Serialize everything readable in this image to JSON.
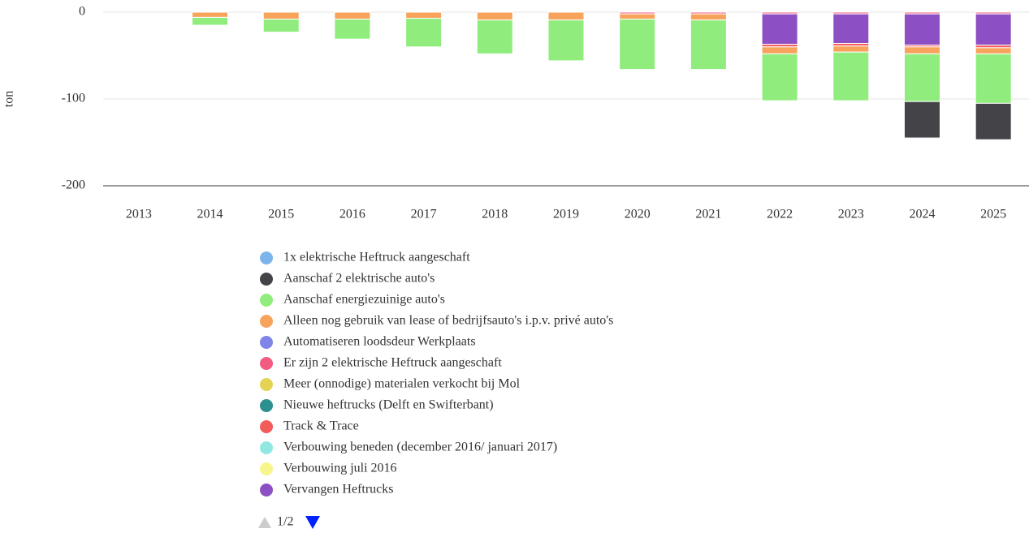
{
  "chart_data": {
    "type": "stacked-bar",
    "y_label": "ton",
    "categories": [
      "2013",
      "2014",
      "2015",
      "2016",
      "2017",
      "2018",
      "2019",
      "2020",
      "2021",
      "2022",
      "2023",
      "2024",
      "2025"
    ],
    "ylim": [
      -200,
      0
    ],
    "yticks": [
      0,
      -100,
      -200
    ],
    "grid": true,
    "series": [
      {
        "name": "1x elektrische Heftruck aangeschaft",
        "color": "#7cb5ec",
        "values": [
          null,
          null,
          null,
          null,
          null,
          null,
          null,
          null,
          null,
          null,
          null,
          -1,
          -1
        ]
      },
      {
        "name": "Aanschaf 2 elektrische auto's",
        "color": "#434348",
        "values": [
          null,
          null,
          null,
          null,
          null,
          null,
          null,
          null,
          null,
          null,
          null,
          -42,
          -42
        ]
      },
      {
        "name": "Aanschaf energiezuinige auto's",
        "color": "#90ed7d",
        "values": [
          null,
          -9,
          -15,
          -23,
          -33,
          -39,
          -47,
          -58,
          -57,
          -54,
          -56,
          -55,
          -57
        ]
      },
      {
        "name": "Alleen nog gebruik van lease of bedrijfsauto's i.p.v. privé auto's",
        "color": "#f7a35c",
        "values": [
          null,
          -6,
          -8,
          -8,
          -7,
          -9,
          -9,
          -6,
          -7,
          -8,
          -7,
          -8,
          -7
        ]
      },
      {
        "name": "Automatiseren loodsdeur Werkplaats",
        "color": "#8085e9",
        "values": [
          null,
          null,
          null,
          null,
          null,
          null,
          null,
          null,
          null,
          null,
          null,
          null,
          null
        ]
      },
      {
        "name": "Er zijn 2 elektrische Heftruck aangeschaft",
        "color": "#f15c80",
        "values": [
          null,
          null,
          null,
          null,
          null,
          null,
          null,
          -2,
          -2,
          -2,
          -2,
          -2,
          -2
        ]
      },
      {
        "name": "Meer (onnodige) materialen verkocht bij Mol",
        "color": "#e4d354",
        "values": [
          null,
          null,
          null,
          null,
          null,
          null,
          null,
          null,
          null,
          null,
          null,
          null,
          null
        ]
      },
      {
        "name": "Nieuwe heftrucks (Delft en Swifterbant)",
        "color": "#2b908f",
        "values": [
          null,
          null,
          null,
          null,
          null,
          null,
          null,
          null,
          null,
          null,
          null,
          null,
          null
        ]
      },
      {
        "name": "Track & Trace",
        "color": "#f45b5b",
        "values": [
          null,
          null,
          null,
          null,
          null,
          null,
          null,
          null,
          null,
          -3,
          -3,
          -2,
          -3
        ]
      },
      {
        "name": "Verbouwing beneden (december 2016/ januari 2017)",
        "color": "#91e8e1",
        "values": [
          null,
          null,
          null,
          null,
          null,
          null,
          null,
          null,
          null,
          null,
          null,
          null,
          null
        ]
      },
      {
        "name": "Verbouwing juli 2016",
        "color": "#f7f58c",
        "values": [
          null,
          null,
          null,
          null,
          null,
          null,
          null,
          null,
          null,
          null,
          null,
          null,
          null
        ]
      },
      {
        "name": "Vervangen Heftrucks",
        "color": "#8d4fc4",
        "values": [
          null,
          null,
          null,
          null,
          null,
          null,
          null,
          null,
          null,
          -35,
          -34,
          -36,
          -36
        ]
      }
    ],
    "pagination": "1/2"
  }
}
